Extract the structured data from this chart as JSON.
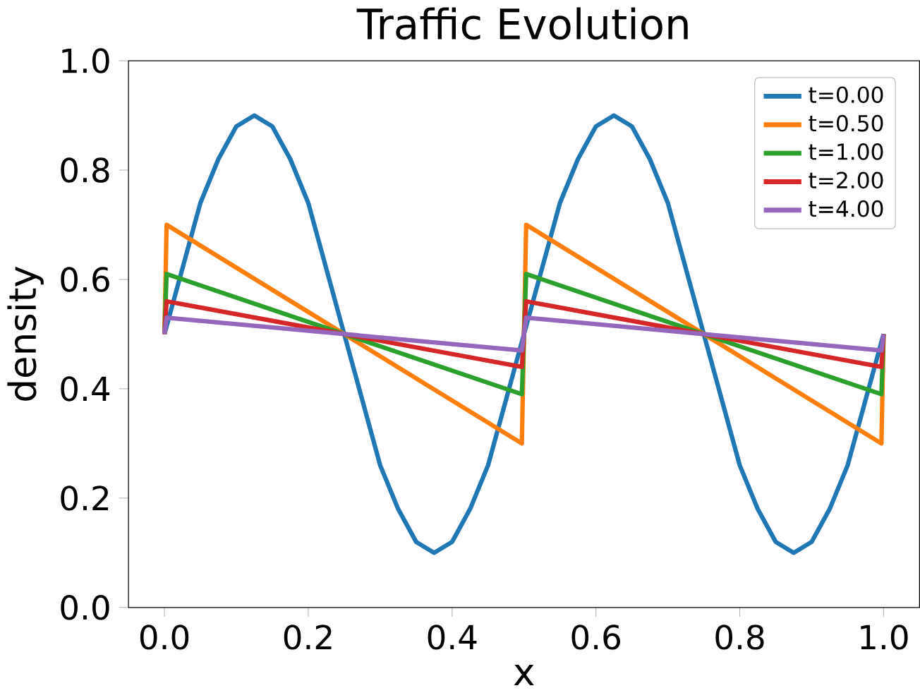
{
  "chart_data": {
    "type": "line",
    "title": "Traffic Evolution",
    "xlabel": "x",
    "ylabel": "density",
    "xlim": [
      -0.05,
      1.05
    ],
    "ylim": [
      0,
      1
    ],
    "xticks": [
      {
        "value": 0,
        "label": "0.0"
      },
      0.2,
      0.4,
      0.6,
      0.8,
      {
        "value": 1,
        "label": "1.0"
      }
    ],
    "yticks": [
      {
        "value": 0,
        "label": "0.0"
      },
      0.2,
      0.4,
      0.6,
      0.8,
      {
        "value": 1,
        "label": "1.0"
      }
    ],
    "grid": false,
    "legend": "top right",
    "line_style": "solid",
    "marker": "none",
    "series": [
      {
        "name": "t=0.00",
        "color": "#1f77b4",
        "x": [
          0,
          0.025,
          0.05,
          0.075,
          0.1,
          0.125,
          0.15,
          0.175,
          0.2,
          0.225,
          0.25,
          0.275,
          0.3,
          0.325,
          0.35,
          0.375,
          0.4,
          0.425,
          0.45,
          0.475,
          0.5,
          0.525,
          0.55,
          0.575,
          0.6,
          0.625,
          0.65,
          0.675,
          0.7,
          0.725,
          0.75,
          0.775,
          0.8,
          0.825,
          0.85,
          0.875,
          0.9,
          0.925,
          0.95,
          0.975,
          1.0
        ],
        "values": [
          0.5,
          0.62,
          0.74,
          0.82,
          0.88,
          0.9,
          0.88,
          0.82,
          0.74,
          0.62,
          0.5,
          0.38,
          0.26,
          0.18,
          0.12,
          0.1,
          0.12,
          0.18,
          0.26,
          0.38,
          0.5,
          0.62,
          0.74,
          0.82,
          0.88,
          0.9,
          0.88,
          0.82,
          0.74,
          0.62,
          0.5,
          0.38,
          0.26,
          0.18,
          0.12,
          0.1,
          0.12,
          0.18,
          0.26,
          0.38,
          0.5
        ]
      },
      {
        "name": "t=0.50",
        "color": "#ff7f0e",
        "x": [
          0,
          0.003,
          0.497,
          0.503,
          0.997,
          1.0
        ],
        "values": [
          0.5,
          0.7,
          0.3,
          0.7,
          0.3,
          0.5
        ]
      },
      {
        "name": "t=1.00",
        "color": "#2ca02c",
        "x": [
          0,
          0.003,
          0.497,
          0.503,
          0.997,
          1.0
        ],
        "values": [
          0.5,
          0.61,
          0.39,
          0.61,
          0.39,
          0.5
        ]
      },
      {
        "name": "t=2.00",
        "color": "#d62728",
        "x": [
          0,
          0.003,
          0.497,
          0.503,
          0.997,
          1.0
        ],
        "values": [
          0.5,
          0.56,
          0.44,
          0.56,
          0.44,
          0.5
        ]
      },
      {
        "name": "t=4.00",
        "color": "#9467bd",
        "x": [
          0,
          0.003,
          0.497,
          0.503,
          0.997,
          1.0
        ],
        "values": [
          0.5,
          0.53,
          0.47,
          0.53,
          0.47,
          0.5
        ]
      }
    ]
  }
}
